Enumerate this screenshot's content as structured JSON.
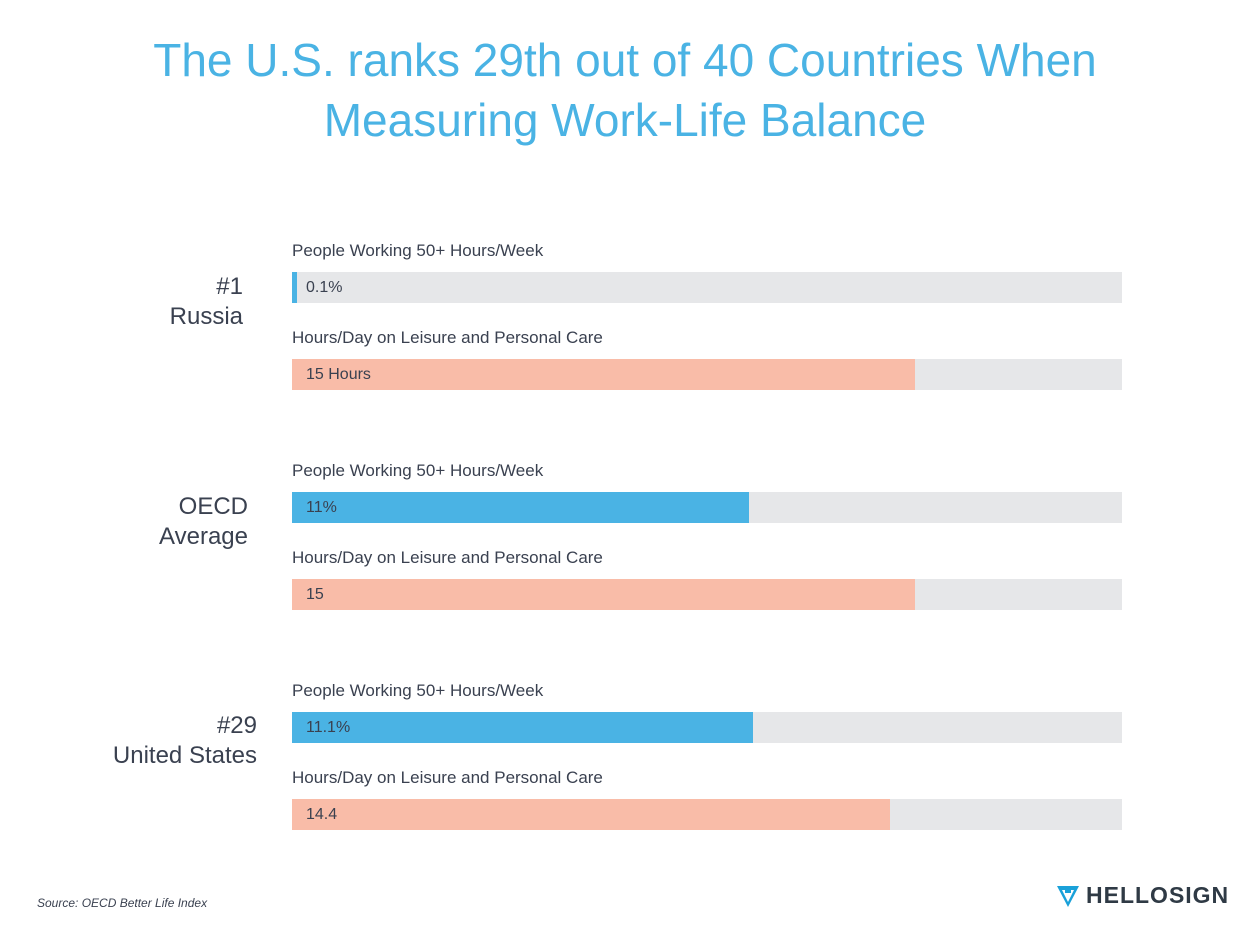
{
  "colors": {
    "title": "#4ab3e4",
    "blue_bar": "#4ab3e4",
    "salmon_bar": "#f9bca8",
    "track": "#e6e7e9",
    "text": "#3a4150",
    "logo_mark": "#1aa1d9"
  },
  "title": {
    "line1": "The U.S. ranks 29th out of 40 Countries When",
    "line2": "Measuring Work-Life Balance"
  },
  "chart_data": {
    "type": "bar",
    "orientation": "horizontal",
    "title": "The U.S. ranks 29th out of 40 Countries When Measuring Work-Life Balance",
    "groups": [
      {
        "rank": "#1",
        "name": "Russia",
        "metrics": [
          {
            "label": "People Working 50+ Hours/Week",
            "value": 0.1,
            "unit": "%",
            "scale_max": 18.2,
            "display": "0.1%",
            "color": "blue"
          },
          {
            "label": "Hours/Day on Leisure and Personal Care",
            "value": 15,
            "unit": "hours",
            "scale_max": 20,
            "display": "15 Hours",
            "color": "salmon"
          }
        ]
      },
      {
        "rank": "OECD",
        "name": "Average",
        "metrics": [
          {
            "label": "People Working 50+ Hours/Week",
            "value": 11,
            "unit": "%",
            "scale_max": 20,
            "display": "11%",
            "color": "blue"
          },
          {
            "label": "Hours/Day on Leisure and Personal Care",
            "value": 15,
            "unit": "hours",
            "scale_max": 20,
            "display": "15",
            "color": "salmon"
          }
        ]
      },
      {
        "rank": "#29",
        "name": "United States",
        "metrics": [
          {
            "label": "People Working 50+ Hours/Week",
            "value": 11.1,
            "unit": "%",
            "scale_max": 20,
            "display": "11.1%",
            "color": "blue"
          },
          {
            "label": "Hours/Day on Leisure and Personal Care",
            "value": 14.4,
            "unit": "hours",
            "scale_max": 20,
            "display": "14.4",
            "color": "salmon"
          }
        ]
      }
    ]
  },
  "source": "Source: OECD Better Life Index",
  "logo": {
    "text": "HELLOSIGN",
    "icon": "hellosign-logo-icon"
  }
}
